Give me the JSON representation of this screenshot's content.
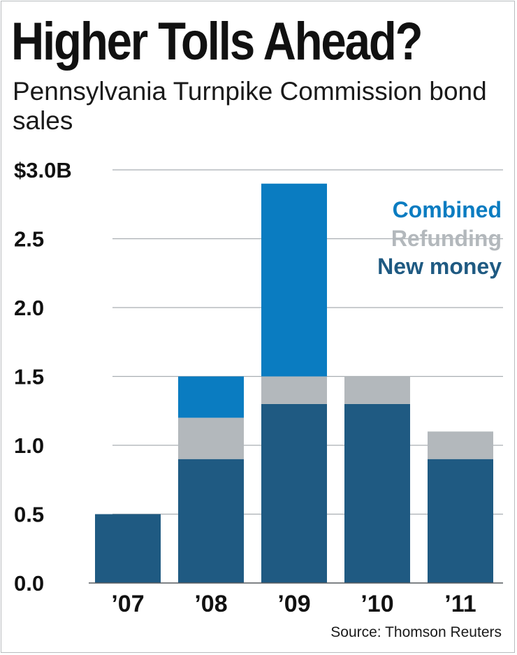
{
  "chart_data": {
    "type": "bar",
    "stacked": true,
    "title": "Higher Tolls Ahead?",
    "subtitle": "Pennsylvania Turnpike Commission bond sales",
    "categories": [
      "’07",
      "’08",
      "’09",
      "’10",
      "’11"
    ],
    "series": [
      {
        "name": "New money",
        "values": [
          0.5,
          0.9,
          1.3,
          1.3,
          0.9
        ],
        "color": "#1f5a82"
      },
      {
        "name": "Refunding",
        "values": [
          0,
          0.3,
          0.2,
          0.2,
          0.2
        ],
        "color": "#b3b8bc"
      },
      {
        "name": "Combined",
        "values": [
          0,
          0.3,
          1.4,
          0,
          0
        ],
        "color": "#0a7cc1"
      }
    ],
    "legend_order": [
      "Combined",
      "Refunding",
      "New money"
    ],
    "ylim": [
      0,
      3.0
    ],
    "yticks": [
      0,
      0.5,
      1.0,
      1.5,
      2.0,
      2.5,
      3.0
    ],
    "ytick_labels": [
      "0.0",
      "0.5",
      "1.0",
      "1.5",
      "2.0",
      "2.5",
      "$3.0B"
    ],
    "xlabel": "",
    "ylabel": "",
    "grid": true,
    "legend_position": "top-right",
    "source": "Source: Thomson Reuters"
  }
}
